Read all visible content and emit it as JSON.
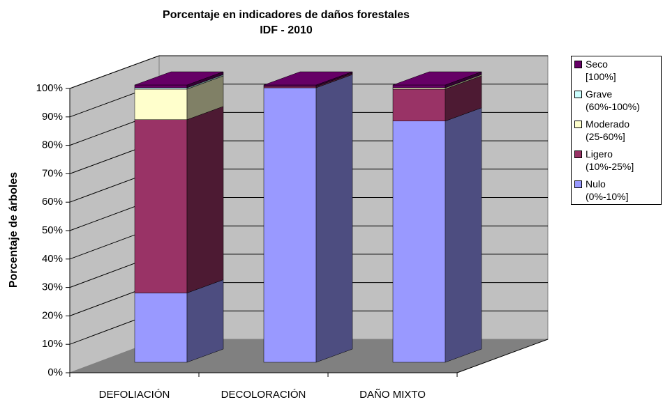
{
  "chart_data": {
    "type": "bar3d_stacked",
    "title": "Porcentaje en indicadores de daños forestales",
    "subtitle": "IDF - 2010",
    "y_label": "Porcentaje de árboles",
    "categories": [
      "DEFOLIACIÓN",
      "DECOLORACIÓN",
      "DAÑO MIXTO"
    ],
    "series": [
      {
        "name": "Nulo\n(0%-10%]",
        "color": "#9999ff",
        "values": [
          25,
          99,
          87
        ]
      },
      {
        "name": "Ligero\n(10%-25%]",
        "color": "#993366",
        "values": [
          62.5,
          0.5,
          11.5
        ]
      },
      {
        "name": "Moderado\n(25-60%]",
        "color": "#ffffcc",
        "values": [
          11,
          0,
          0.5
        ]
      },
      {
        "name": "Grave\n(60%-100%)",
        "color": "#ccffff",
        "values": [
          0.5,
          0,
          0
        ]
      },
      {
        "name": "Seco\n[100%]",
        "color": "#660066",
        "values": [
          1,
          0.5,
          1
        ]
      }
    ],
    "ylim": [
      0,
      100
    ],
    "yticks": [
      {
        "value": 0,
        "label": "0%"
      },
      {
        "value": 10,
        "label": "10%"
      },
      {
        "value": 20,
        "label": "20%"
      },
      {
        "value": 30,
        "label": "30%"
      },
      {
        "value": 40,
        "label": "40%"
      },
      {
        "value": 50,
        "label": "50%"
      },
      {
        "value": 60,
        "label": "60%"
      },
      {
        "value": 70,
        "label": "70%"
      },
      {
        "value": 80,
        "label": "80%"
      },
      {
        "value": 90,
        "label": "90%"
      },
      {
        "value": 100,
        "label": "100%"
      }
    ],
    "grid": true
  }
}
